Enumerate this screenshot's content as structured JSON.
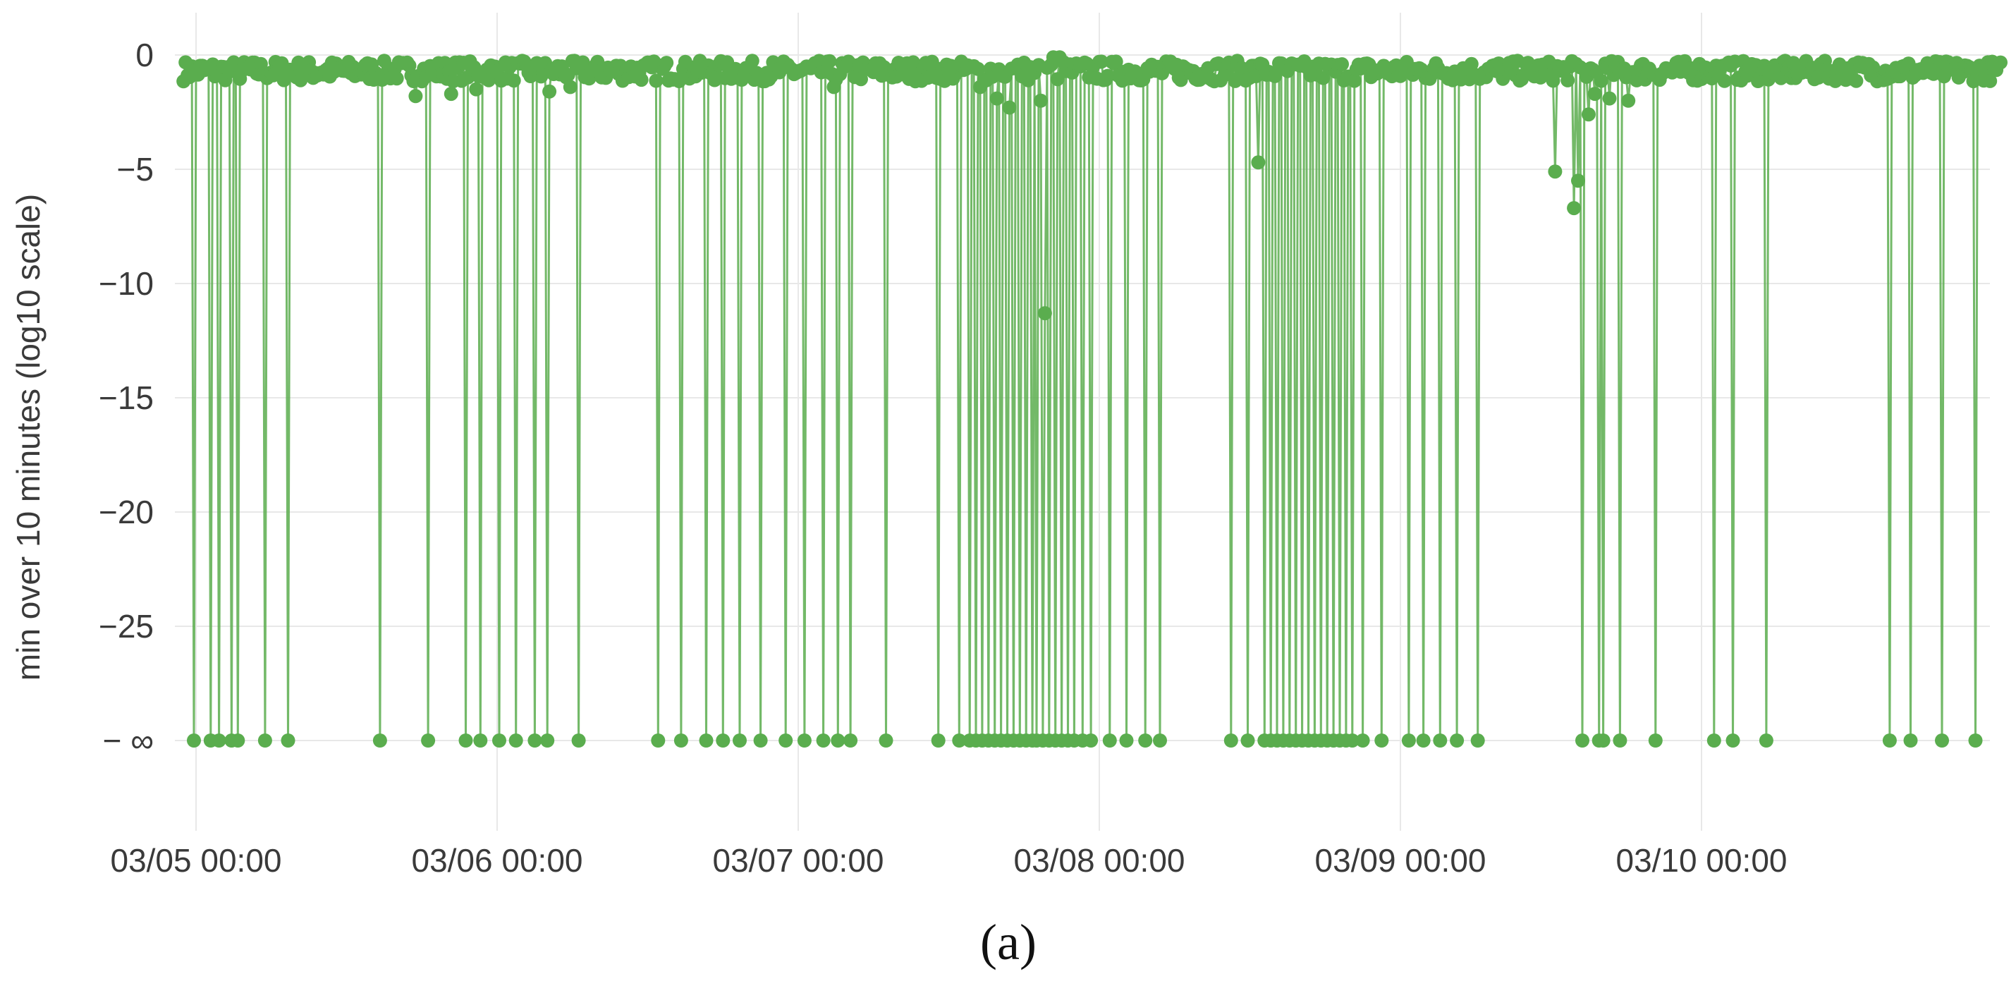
{
  "caption": "(a)",
  "chart_data": {
    "type": "line",
    "ylabel": "min over 10 minutes  (log10 scale)",
    "xlabel": "",
    "title": "",
    "x_ticks": [
      "03/05 00:00",
      "03/06 00:00",
      "03/07 00:00",
      "03/08 00:00",
      "03/09 00:00",
      "03/10 00:00"
    ],
    "y_ticks": [
      "0",
      "−5",
      "−10",
      "−15",
      "−20",
      "−25",
      "− ∞"
    ],
    "y_tick_values": [
      0,
      -5,
      -10,
      -15,
      -20,
      -25,
      -30
    ],
    "ylim": [
      -34,
      0.8
    ],
    "neg_infinity_plotted_at": -30,
    "xlim_days": [
      "03/04 23:00",
      "03/10 23:50"
    ],
    "grid": true,
    "legend": "none",
    "series_color": "#5aad4e",
    "series": [
      {
        "baseline_value": -0.7,
        "neg_infinity_drops_at": [
          "03/04 23:55",
          "03/05 01:05",
          "03/05 01:45",
          "03/05 02:50",
          "03/05 03:20",
          "03/05 05:25",
          "03/05 07:15",
          "03/05 14:40",
          "03/05 18:25",
          "03/05 21:25",
          "03/05 22:40",
          "03/06 00:05",
          "03/06 01:25",
          "03/06 02:55",
          "03/06 03:55",
          "03/06 05:45",
          "03/06 06:30",
          "03/06 12:45",
          "03/06 14:40",
          "03/06 16:35",
          "03/06 17:55",
          "03/06 19:20",
          "03/06 20:55",
          "03/06 22:55",
          "03/07 00:25",
          "03/07 02:00",
          "03/07 03:10",
          "03/07 04:05",
          "03/07 06:55",
          "03/07 11:05",
          "03/07 12:45",
          "03/07 13:40",
          "03/07 14:10",
          "03/07 14:40",
          "03/07 15:10",
          "03/07 15:35",
          "03/07 16:10",
          "03/07 16:35",
          "03/07 17:05",
          "03/07 17:35",
          "03/07 18:05",
          "03/07 18:35",
          "03/07 19:00",
          "03/07 19:30",
          "03/07 20:00",
          "03/07 20:25",
          "03/07 20:55",
          "03/07 21:30",
          "03/07 21:55",
          "03/07 22:35",
          "03/07 23:20",
          "03/08 00:45",
          "03/08 02:10",
          "03/08 03:35",
          "03/08 04:45",
          "03/08 10:25",
          "03/08 11:45",
          "03/08 12:35",
          "03/08 13:05",
          "03/08 13:35",
          "03/08 14:05",
          "03/08 14:35",
          "03/08 15:05",
          "03/08 15:35",
          "03/08 16:05",
          "03/08 16:35",
          "03/08 17:05",
          "03/08 17:35",
          "03/08 18:05",
          "03/08 18:35",
          "03/08 19:05",
          "03/08 19:35",
          "03/08 20:05",
          "03/08 20:55",
          "03/08 22:25",
          "03/09 00:35",
          "03/09 01:45",
          "03/09 03:05",
          "03/09 04:25",
          "03/09 06:05",
          "03/09 14:05",
          "03/09 14:25",
          "03/09 15:45",
          "03/09 16:10",
          "03/09 17:25",
          "03/09 20:15",
          "03/10 00:55",
          "03/10 02:30",
          "03/10 05:05",
          "03/10 14:55",
          "03/10 16:40",
          "03/10 19:10",
          "03/10 21:50"
        ],
        "finite_dips": [
          {
            "x": "03/05 17:30",
            "y": -1.8
          },
          {
            "x": "03/05 20:15",
            "y": -1.7
          },
          {
            "x": "03/05 22:15",
            "y": -1.5
          },
          {
            "x": "03/06 04:10",
            "y": -1.6
          },
          {
            "x": "03/06 05:50",
            "y": -1.4
          },
          {
            "x": "03/07 02:50",
            "y": -1.4
          },
          {
            "x": "03/07 14:25",
            "y": -1.4
          },
          {
            "x": "03/07 15:45",
            "y": -1.9
          },
          {
            "x": "03/07 16:50",
            "y": -2.3
          },
          {
            "x": "03/07 19:20",
            "y": -2.0
          },
          {
            "x": "03/07 19:40",
            "y": -11.3
          },
          {
            "x": "03/08 12:40",
            "y": -4.7
          },
          {
            "x": "03/09 12:15",
            "y": -5.1
          },
          {
            "x": "03/09 13:50",
            "y": -6.7
          },
          {
            "x": "03/09 14:10",
            "y": -5.5
          },
          {
            "x": "03/09 15:00",
            "y": -2.6
          },
          {
            "x": "03/09 15:25",
            "y": -1.7
          },
          {
            "x": "03/09 16:40",
            "y": -1.9
          },
          {
            "x": "03/09 18:05",
            "y": -2.0
          }
        ],
        "near_zero_peaks": [
          {
            "x": "03/07 20:15",
            "y": -0.1
          },
          {
            "x": "03/07 20:50",
            "y": -0.1
          }
        ]
      }
    ]
  }
}
